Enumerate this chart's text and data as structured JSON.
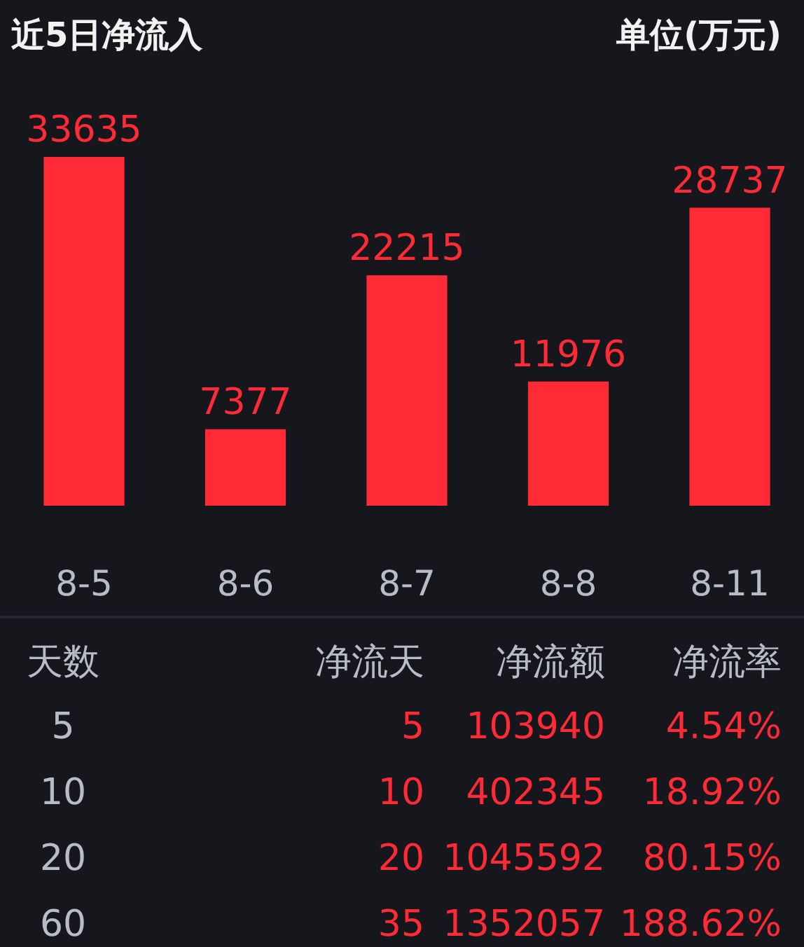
{
  "chart_data": [
    {
      "type": "bar",
      "title": "近5日净流入",
      "subtitle": "单位(万元)",
      "categories": [
        "8-5",
        "8-6",
        "8-7",
        "8-8",
        "8-11"
      ],
      "values": [
        33635,
        7377,
        22215,
        11976,
        28737
      ],
      "color": "#fe2a36",
      "data_labels": true
    },
    {
      "type": "other",
      "categories": [
        "天数",
        "净流天",
        "净流额",
        "净流率"
      ],
      "color": "#fe2a36",
      "annotations": [
        "5",
        "5",
        "103940",
        "4.54%",
        "10",
        "10",
        "402345",
        "18.92%",
        "20",
        "20",
        "1045592",
        "80.15%",
        "60",
        "35",
        "1352057",
        "188.62%"
      ]
    }
  ]
}
